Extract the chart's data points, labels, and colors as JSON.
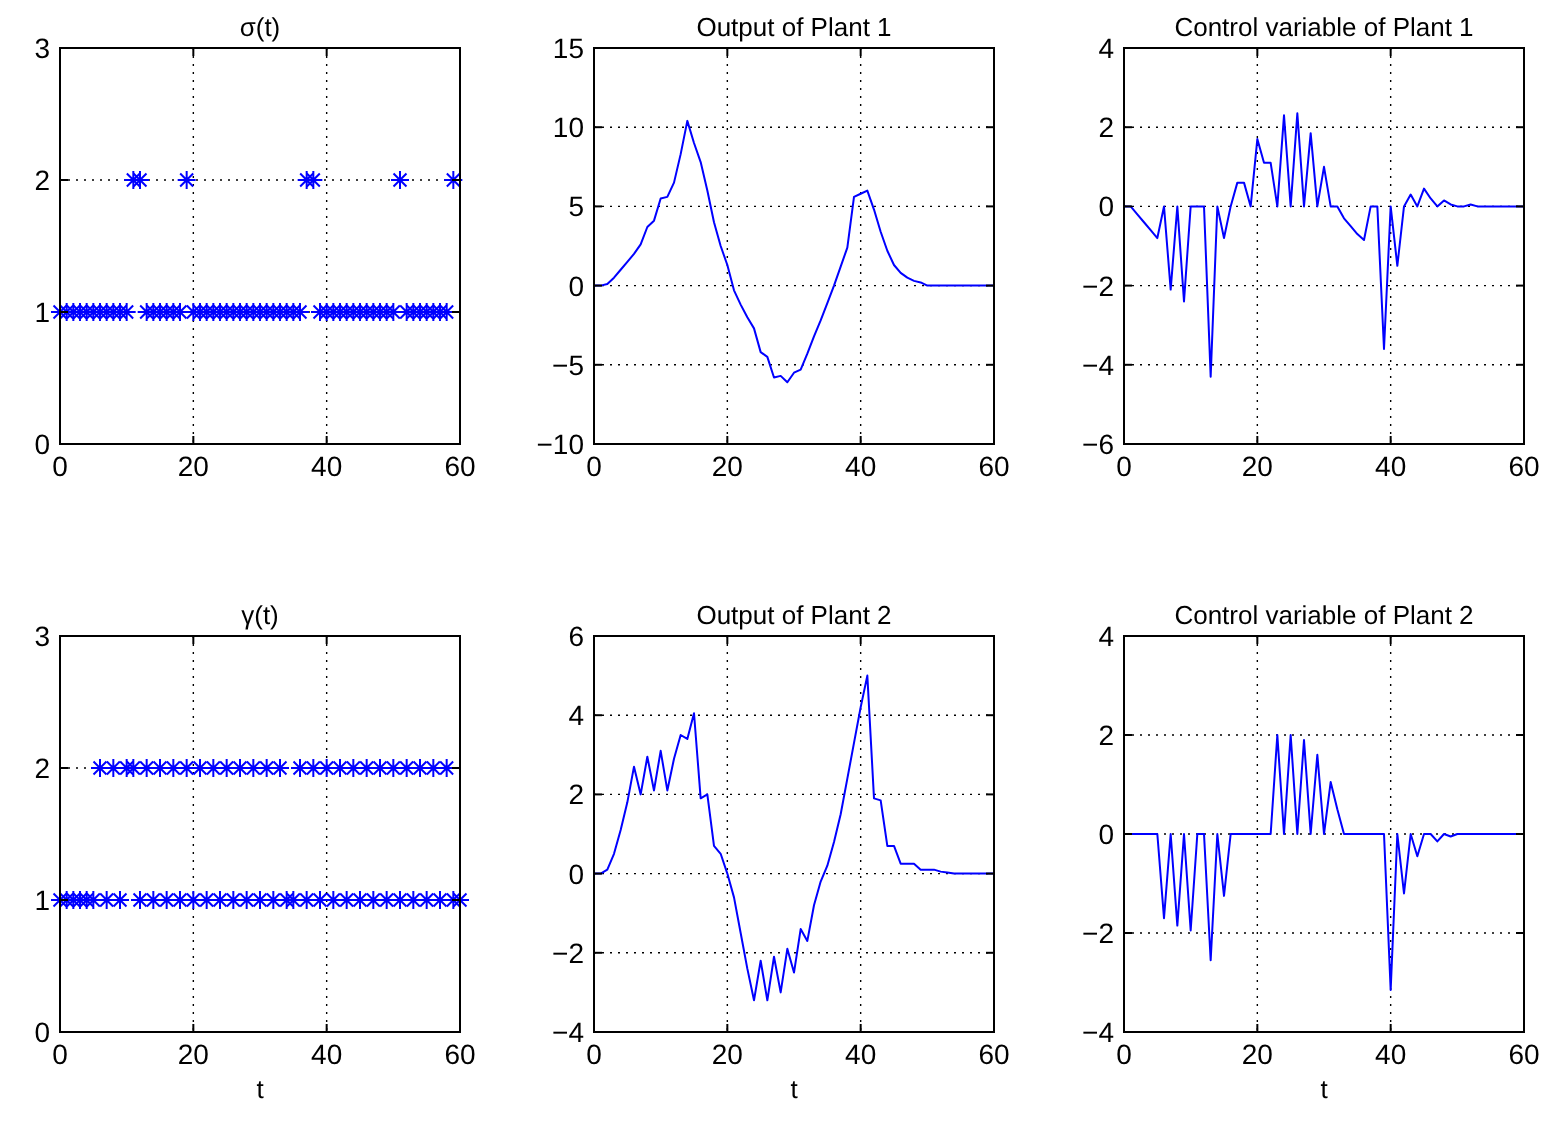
{
  "chart_data": [
    {
      "type": "scatter",
      "title": "σ(t)",
      "marker": "cross",
      "grid": true,
      "xlim": [
        0,
        60
      ],
      "xticks": [
        0,
        20,
        40,
        60
      ],
      "ylim": [
        0,
        3
      ],
      "yticks": [
        0,
        1,
        2,
        3
      ],
      "series": [
        {
          "color": "#0000ff",
          "x": [
            0,
            1,
            2,
            3,
            4,
            5,
            6,
            7,
            8,
            9,
            10,
            11,
            12,
            13,
            14,
            15,
            16,
            17,
            18,
            19,
            20,
            21,
            22,
            23,
            24,
            25,
            26,
            27,
            28,
            29,
            30,
            31,
            32,
            33,
            34,
            35,
            36,
            37,
            38,
            39,
            40,
            41,
            42,
            43,
            44,
            45,
            46,
            47,
            48,
            49,
            50,
            51,
            52,
            53,
            54,
            55,
            56,
            57,
            58,
            59
          ],
          "values": [
            1,
            1,
            1,
            1,
            1,
            1,
            1,
            1,
            1,
            1,
            1,
            2,
            2,
            1,
            1,
            1,
            1,
            1,
            1,
            2,
            1,
            1,
            1,
            1,
            1,
            1,
            1,
            1,
            1,
            1,
            1,
            1,
            1,
            1,
            1,
            1,
            1,
            2,
            2,
            1,
            1,
            1,
            1,
            1,
            1,
            1,
            1,
            1,
            1,
            1,
            1,
            2,
            1,
            1,
            1,
            1,
            1,
            1,
            1,
            2
          ]
        }
      ]
    },
    {
      "type": "line",
      "title": "Output of Plant 1",
      "line_style": "solid",
      "grid": true,
      "xlim": [
        0,
        60
      ],
      "xticks": [
        0,
        20,
        40,
        60
      ],
      "ylim": [
        -10,
        15
      ],
      "yticks": [
        -10,
        -5,
        0,
        5,
        10,
        15
      ],
      "series": [
        {
          "color": "#0000ff",
          "x": [
            0,
            1,
            2,
            3,
            4,
            5,
            6,
            7,
            8,
            9,
            10,
            11,
            12,
            13,
            14,
            15,
            16,
            17,
            18,
            19,
            20,
            21,
            22,
            23,
            24,
            25,
            26,
            27,
            28,
            29,
            30,
            31,
            32,
            33,
            34,
            35,
            36,
            37,
            38,
            39,
            40,
            41,
            42,
            43,
            44,
            45,
            46,
            47,
            48,
            49,
            50,
            51,
            52,
            53,
            54,
            55,
            56,
            57,
            58,
            59,
            60
          ],
          "values": [
            0,
            0,
            0.1,
            0.5,
            1,
            1.5,
            2,
            2.6,
            3.7,
            4.1,
            5.5,
            5.6,
            6.5,
            8.3,
            10.4,
            9,
            7.8,
            6,
            4,
            2.5,
            1.3,
            -0.3,
            -1.2,
            -2,
            -2.7,
            -4.2,
            -4.5,
            -5.8,
            -5.7,
            -6.1,
            -5.5,
            -5.3,
            -4.3,
            -3.2,
            -2.2,
            -1.1,
            0,
            1.2,
            2.4,
            5.6,
            5.8,
            6,
            4.8,
            3.4,
            2.2,
            1.3,
            0.8,
            0.5,
            0.3,
            0.2,
            0,
            0,
            0,
            0,
            0,
            0,
            0,
            0,
            0,
            0,
            0
          ]
        }
      ]
    },
    {
      "type": "line",
      "title": "Control variable of Plant 1",
      "line_style": "solid",
      "grid": true,
      "xlim": [
        0,
        60
      ],
      "xticks": [
        0,
        20,
        40,
        60
      ],
      "ylim": [
        -6,
        4
      ],
      "yticks": [
        -6,
        -4,
        -2,
        0,
        2,
        4
      ],
      "series": [
        {
          "color": "#0000ff",
          "x": [
            0,
            1,
            2,
            3,
            4,
            5,
            6,
            7,
            8,
            9,
            10,
            11,
            12,
            13,
            14,
            15,
            16,
            17,
            18,
            19,
            20,
            21,
            22,
            23,
            24,
            25,
            26,
            27,
            28,
            29,
            30,
            31,
            32,
            33,
            34,
            35,
            36,
            37,
            38,
            39,
            40,
            41,
            42,
            43,
            44,
            45,
            46,
            47,
            48,
            49,
            50,
            51,
            52,
            53,
            54,
            55,
            56,
            57,
            58,
            59,
            60
          ],
          "values": [
            0,
            0,
            -0.2,
            -0.4,
            -0.6,
            -0.8,
            0,
            -2.1,
            0,
            -2.4,
            0,
            0,
            0,
            -4.3,
            0,
            -0.8,
            0,
            0.6,
            0.6,
            0,
            1.7,
            1.1,
            1.1,
            0,
            2.3,
            0,
            2.35,
            0,
            1.85,
            0,
            1,
            0,
            0,
            -0.3,
            -0.5,
            -0.7,
            -0.85,
            0,
            0,
            -3.6,
            0,
            -1.5,
            0,
            0.3,
            0,
            0.45,
            0.2,
            0,
            0.15,
            0.05,
            0,
            0,
            0.05,
            0,
            0,
            0,
            0,
            0,
            0,
            0,
            0
          ]
        }
      ]
    },
    {
      "type": "scatter",
      "title": "γ(t)",
      "xlabel": "t",
      "marker": "cross",
      "grid": true,
      "xlim": [
        0,
        60
      ],
      "xticks": [
        0,
        20,
        40,
        60
      ],
      "ylim": [
        0,
        3
      ],
      "yticks": [
        0,
        1,
        2,
        3
      ],
      "series": [
        {
          "color": "#0000ff",
          "x": [
            0,
            1,
            2,
            3,
            4,
            5,
            6,
            7,
            8,
            9,
            10,
            11,
            12,
            13,
            14,
            15,
            16,
            17,
            18,
            19,
            20,
            21,
            22,
            23,
            24,
            25,
            26,
            27,
            28,
            29,
            30,
            31,
            32,
            33,
            34,
            35,
            36,
            37,
            38,
            39,
            40,
            41,
            42,
            43,
            44,
            45,
            46,
            47,
            48,
            49,
            50,
            51,
            52,
            53,
            54,
            55,
            56,
            57,
            58,
            59,
            60
          ],
          "values": [
            1,
            1,
            1,
            1,
            1,
            1,
            2,
            1,
            2,
            1,
            2,
            2,
            1,
            2,
            1,
            2,
            1,
            2,
            1,
            2,
            1,
            2,
            1,
            2,
            1,
            2,
            1,
            2,
            1,
            2,
            1,
            2,
            1,
            2,
            1,
            1,
            2,
            1,
            2,
            1,
            2,
            1,
            2,
            1,
            2,
            1,
            2,
            1,
            2,
            1,
            2,
            1,
            2,
            1,
            2,
            1,
            2,
            1,
            2,
            1,
            1
          ]
        }
      ]
    },
    {
      "type": "line",
      "title": "Output of Plant 2",
      "xlabel": "t",
      "line_style": "solid",
      "grid": true,
      "xlim": [
        0,
        60
      ],
      "xticks": [
        0,
        20,
        40,
        60
      ],
      "ylim": [
        -4,
        6
      ],
      "yticks": [
        -4,
        -2,
        0,
        2,
        4,
        6
      ],
      "series": [
        {
          "color": "#0000ff",
          "x": [
            0,
            1,
            2,
            3,
            4,
            5,
            6,
            7,
            8,
            9,
            10,
            11,
            12,
            13,
            14,
            15,
            16,
            17,
            18,
            19,
            20,
            21,
            22,
            23,
            24,
            25,
            26,
            27,
            28,
            29,
            30,
            31,
            32,
            33,
            34,
            35,
            36,
            37,
            38,
            39,
            40,
            41,
            42,
            43,
            44,
            45,
            46,
            47,
            48,
            49,
            50,
            51,
            52,
            53,
            54,
            55,
            56,
            57,
            58,
            59,
            60
          ],
          "values": [
            0,
            0,
            0.1,
            0.5,
            1.1,
            1.8,
            2.7,
            2,
            2.95,
            2.1,
            3.1,
            2.1,
            2.9,
            3.5,
            3.4,
            4.05,
            1.9,
            2,
            0.7,
            0.5,
            0,
            -0.6,
            -1.5,
            -2.4,
            -3.2,
            -2.2,
            -3.2,
            -2.1,
            -3,
            -1.9,
            -2.5,
            -1.4,
            -1.7,
            -0.8,
            -0.2,
            0.2,
            0.8,
            1.5,
            2.4,
            3.3,
            4.2,
            5,
            1.9,
            1.85,
            0.7,
            0.7,
            0.25,
            0.25,
            0.25,
            0.1,
            0.1,
            0.1,
            0.05,
            0.03,
            0,
            0,
            0,
            0,
            0,
            0,
            0
          ]
        }
      ]
    },
    {
      "type": "line",
      "title": "Control variable of Plant 2",
      "xlabel": "t",
      "line_style": "solid",
      "grid": true,
      "xlim": [
        0,
        60
      ],
      "xticks": [
        0,
        20,
        40,
        60
      ],
      "ylim": [
        -4,
        4
      ],
      "yticks": [
        -4,
        -2,
        0,
        2,
        4
      ],
      "series": [
        {
          "color": "#0000ff",
          "x": [
            0,
            1,
            2,
            3,
            4,
            5,
            6,
            7,
            8,
            9,
            10,
            11,
            12,
            13,
            14,
            15,
            16,
            17,
            18,
            19,
            20,
            21,
            22,
            23,
            24,
            25,
            26,
            27,
            28,
            29,
            30,
            31,
            32,
            33,
            34,
            35,
            36,
            37,
            38,
            39,
            40,
            41,
            42,
            43,
            44,
            45,
            46,
            47,
            48,
            49,
            50,
            51,
            52,
            53,
            54,
            55,
            56,
            57,
            58,
            59,
            60
          ],
          "values": [
            0,
            0,
            0,
            0,
            0,
            0,
            -1.7,
            0,
            -1.85,
            0,
            -1.95,
            0,
            0,
            -2.55,
            0,
            -1.25,
            0,
            0,
            0,
            0,
            0,
            0,
            0,
            2,
            0,
            2,
            0,
            1.9,
            0,
            1.6,
            0,
            1.05,
            0.5,
            0,
            0,
            0,
            0,
            0,
            0,
            0,
            -3.15,
            0,
            -1.2,
            0,
            -0.45,
            0,
            0,
            -0.15,
            0,
            -0.05,
            0,
            0,
            0,
            0,
            0,
            0,
            0,
            0,
            0,
            0,
            0
          ]
        }
      ]
    }
  ]
}
